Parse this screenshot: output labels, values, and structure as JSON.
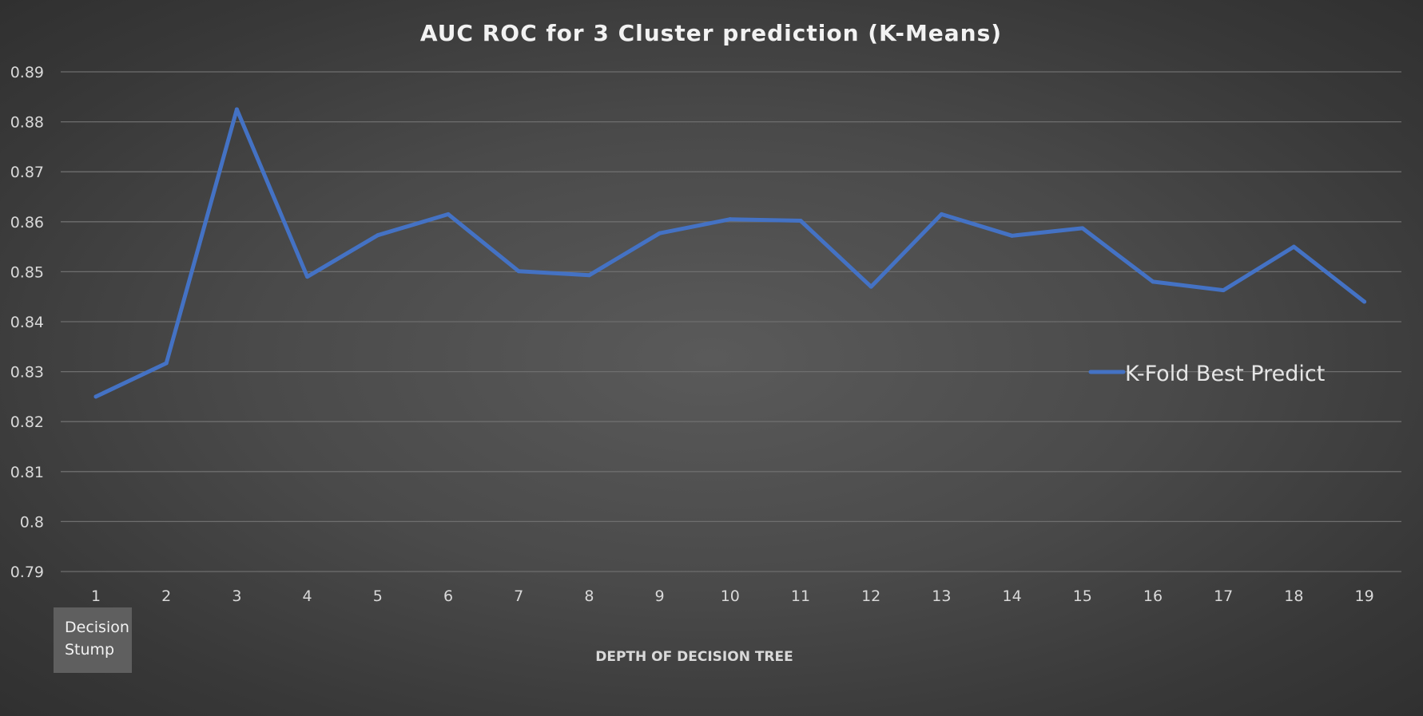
{
  "chart_data": {
    "type": "line",
    "title": "AUC ROC for 3 Cluster prediction (K-Means)",
    "xlabel": "DEPTH OF DECISION TREE",
    "ylabel": "",
    "x": [
      1,
      2,
      3,
      4,
      5,
      6,
      7,
      8,
      9,
      10,
      11,
      12,
      13,
      14,
      15,
      16,
      17,
      18,
      19
    ],
    "x_tick_labels": [
      "1",
      "2",
      "3",
      "4",
      "5",
      "6",
      "7",
      "8",
      "9",
      "10",
      "11",
      "12",
      "13",
      "14",
      "15",
      "16",
      "17",
      "18",
      "19"
    ],
    "y_tick_labels": [
      "0.79",
      "0.8",
      "0.81",
      "0.82",
      "0.83",
      "0.84",
      "0.85",
      "0.86",
      "0.87",
      "0.88",
      "0.89"
    ],
    "y_ticks": [
      0.79,
      0.8,
      0.81,
      0.82,
      0.83,
      0.84,
      0.85,
      0.86,
      0.87,
      0.88,
      0.89
    ],
    "ylim": [
      0.79,
      0.89
    ],
    "grid": true,
    "legend_position": "right",
    "series": [
      {
        "name": "K-Fold Best Predict",
        "color": "#4472c4",
        "values": [
          0.825,
          0.8317,
          0.8825,
          0.849,
          0.8573,
          0.8615,
          0.8501,
          0.8493,
          0.8577,
          0.8605,
          0.8602,
          0.847,
          0.8615,
          0.8572,
          0.8587,
          0.848,
          0.8463,
          0.855,
          0.844
        ]
      }
    ],
    "annotations": [
      {
        "label": "Decision Stump",
        "lines": [
          "Decision",
          "Stump"
        ],
        "at_x": 1,
        "background": "#5f5f5f"
      }
    ]
  }
}
